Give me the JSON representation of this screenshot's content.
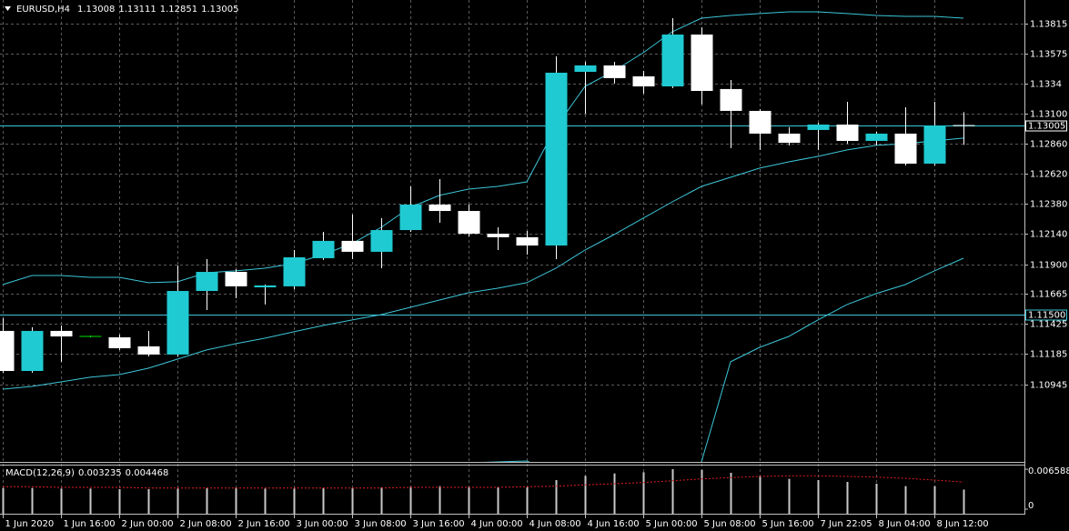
{
  "chart_data": [
    {
      "type": "candlestick",
      "title": "EURUSD,H4",
      "header_values": [
        1.13008,
        1.13111,
        1.12851,
        1.13005
      ],
      "categories": [
        "1 Jun 2020",
        null,
        "1 Jun 16:00",
        null,
        "2 Jun 00:00",
        null,
        "2 Jun 08:00",
        null,
        "2 Jun 16:00",
        null,
        "3 Jun 00:00",
        null,
        "3 Jun 08:00",
        null,
        "3 Jun 16:00",
        null,
        "4 Jun 00:00",
        null,
        "4 Jun 08:00",
        null,
        "4 Jun 16:00",
        null,
        "5 Jun 00:00",
        null,
        "5 Jun 08:00",
        null,
        "5 Jun 16:00",
        null,
        "7 Jun 22:05",
        null,
        "8 Jun 04:00",
        null,
        "8 Jun 12:00",
        null
      ],
      "open": [
        1.11369,
        1.1105,
        1.11369,
        1.11325,
        1.11318,
        1.11246,
        1.11181,
        1.11687,
        1.11839,
        1.11716,
        1.11724,
        1.11948,
        1.12086,
        1.11999,
        1.12172,
        1.12375,
        1.12324,
        1.12143,
        1.12115,
        1.12049,
        1.13432,
        1.13483,
        1.13396,
        1.13316,
        1.13729,
        1.13295,
        1.13121,
        1.1294,
        1.12969,
        1.13012,
        1.12882,
        1.1294,
        1.12701,
        1.13008
      ],
      "high": [
        1.1147,
        1.11398,
        1.11412,
        1.11333,
        1.1134,
        1.11369,
        1.1189,
        1.11941,
        1.11861,
        1.11738,
        1.12013,
        1.12158,
        1.12296,
        1.12267,
        1.1252,
        1.12578,
        1.12375,
        1.12194,
        1.12165,
        1.13555,
        1.13512,
        1.13512,
        1.13439,
        1.13859,
        1.13787,
        1.13367,
        1.13135,
        1.12991,
        1.13027,
        1.13193,
        1.12954,
        1.1315,
        1.13193,
        1.13111
      ],
      "low": [
        1.11036,
        1.11036,
        1.11123,
        1.11318,
        1.11217,
        1.11166,
        1.11166,
        1.11535,
        1.11629,
        1.11579,
        1.11702,
        1.11934,
        1.11941,
        1.11868,
        1.12158,
        1.1223,
        1.12122,
        1.12013,
        1.11977,
        1.11941,
        1.13099,
        1.13338,
        1.13258,
        1.13302,
        1.13172,
        1.12824,
        1.1281,
        1.12846,
        1.1281,
        1.1286,
        1.12846,
        1.12686,
        1.12686,
        1.12851
      ],
      "close": [
        1.1105,
        1.11369,
        1.11325,
        1.11325,
        1.11231,
        1.11181,
        1.11687,
        1.11839,
        1.11724,
        1.11731,
        1.11955,
        1.12086,
        1.11999,
        1.12172,
        1.12375,
        1.12324,
        1.12143,
        1.12115,
        1.12049,
        1.13425,
        1.13483,
        1.13382,
        1.13316,
        1.13729,
        1.1328,
        1.13121,
        1.1294,
        1.12867,
        1.13012,
        1.12882,
        1.1294,
        1.12701,
        1.13005,
        1.13005
      ],
      "bull_color": "#1fcad2",
      "bear_color": "#ffffff",
      "doji_color": "#00e000",
      "bands": {
        "color": "#3cc6d8",
        "upper": [
          1.11738,
          1.1181,
          1.1181,
          1.11796,
          1.11796,
          1.11753,
          1.1176,
          1.11832,
          1.11847,
          1.11868,
          1.11905,
          1.11977,
          1.12064,
          1.12194,
          1.12353,
          1.12448,
          1.12498,
          1.1252,
          1.12556,
          1.12991,
          1.13316,
          1.13439,
          1.13584,
          1.13751,
          1.13859,
          1.13881,
          1.13896,
          1.1391,
          1.1391,
          1.13896,
          1.13881,
          1.13874,
          1.13874,
          1.13859
        ],
        "middle": [
          1.10905,
          1.10927,
          1.10963,
          1.11,
          1.11021,
          1.11072,
          1.11144,
          1.11217,
          1.11267,
          1.11311,
          1.11362,
          1.11412,
          1.11456,
          1.11499,
          1.11557,
          1.11615,
          1.11673,
          1.11709,
          1.11753,
          1.11868,
          1.12013,
          1.12136,
          1.12267,
          1.12397,
          1.1252,
          1.12592,
          1.12665,
          1.12715,
          1.12759,
          1.1281,
          1.12846,
          1.1286,
          1.12882,
          1.12904
        ],
        "lower": [
          1.10058,
          1.10095,
          1.10131,
          1.10167,
          1.10203,
          1.10239,
          1.10239,
          1.10276,
          1.10276,
          1.10276,
          1.10276,
          1.10276,
          1.10276,
          1.1029,
          1.10297,
          1.10312,
          1.10319,
          1.10326,
          1.10333,
          1.10239,
          1.10095,
          1.10022,
          1.10058,
          1.10167,
          1.10326,
          1.11123,
          1.11238,
          1.11325,
          1.11456,
          1.11579,
          1.11666,
          1.11738,
          1.11847,
          1.11948
        ]
      },
      "ylim": [
        1.10326,
        1.14004
      ],
      "yticks": [
        1.13815,
        1.13575,
        1.1334,
        {
          "value": 1.131,
          "label": "1.13100"
        },
        {
          "value": 1.1286,
          "label": "1.12860"
        },
        {
          "value": 1.1262,
          "label": "1.12620"
        },
        {
          "value": 1.1238,
          "label": "1.12380"
        },
        {
          "value": 1.1214,
          "label": "1.12140"
        },
        {
          "value": 1.119,
          "label": "1.11900"
        },
        1.11665,
        1.11425,
        1.11185,
        1.10945
      ],
      "hlines": [
        {
          "value": 1.115,
          "label": "1.11500"
        },
        1.13005
      ],
      "hline_color": "#3cc6d8",
      "grid": true
    },
    {
      "type": "macd",
      "title": "MACD(12,26,9)",
      "histogram": {
        "color": "#c8c8c8",
        "values": [
          0.0035,
          0.0035,
          0.0034,
          0.0034,
          0.0033,
          0.0033,
          0.0034,
          0.0035,
          0.0035,
          0.0034,
          0.0034,
          0.0035,
          0.0035,
          0.0036,
          0.0037,
          0.0038,
          0.0037,
          0.0036,
          0.0036,
          0.0048,
          0.0055,
          0.0059,
          0.0061,
          0.0066,
          0.0065,
          0.006,
          0.0055,
          0.005,
          0.0048,
          0.0045,
          0.0042,
          0.0038,
          0.0038,
          0.003235
        ]
      },
      "signal": {
        "color": "#e02020",
        "values": [
          0.0037,
          0.0037,
          0.0036,
          0.0036,
          0.0036,
          0.0035,
          0.0035,
          0.0035,
          0.0035,
          0.0035,
          0.0035,
          0.0035,
          0.0035,
          0.0035,
          0.0036,
          0.0036,
          0.0036,
          0.0036,
          0.0037,
          0.0038,
          0.004,
          0.0042,
          0.0044,
          0.0047,
          0.005,
          0.0052,
          0.0054,
          0.0055,
          0.0055,
          0.0054,
          0.0053,
          0.0051,
          0.0048,
          0.004468
        ]
      },
      "ylim": [
        0,
        0.0072
      ],
      "yticks": [
        0.006588,
        0
      ]
    }
  ]
}
